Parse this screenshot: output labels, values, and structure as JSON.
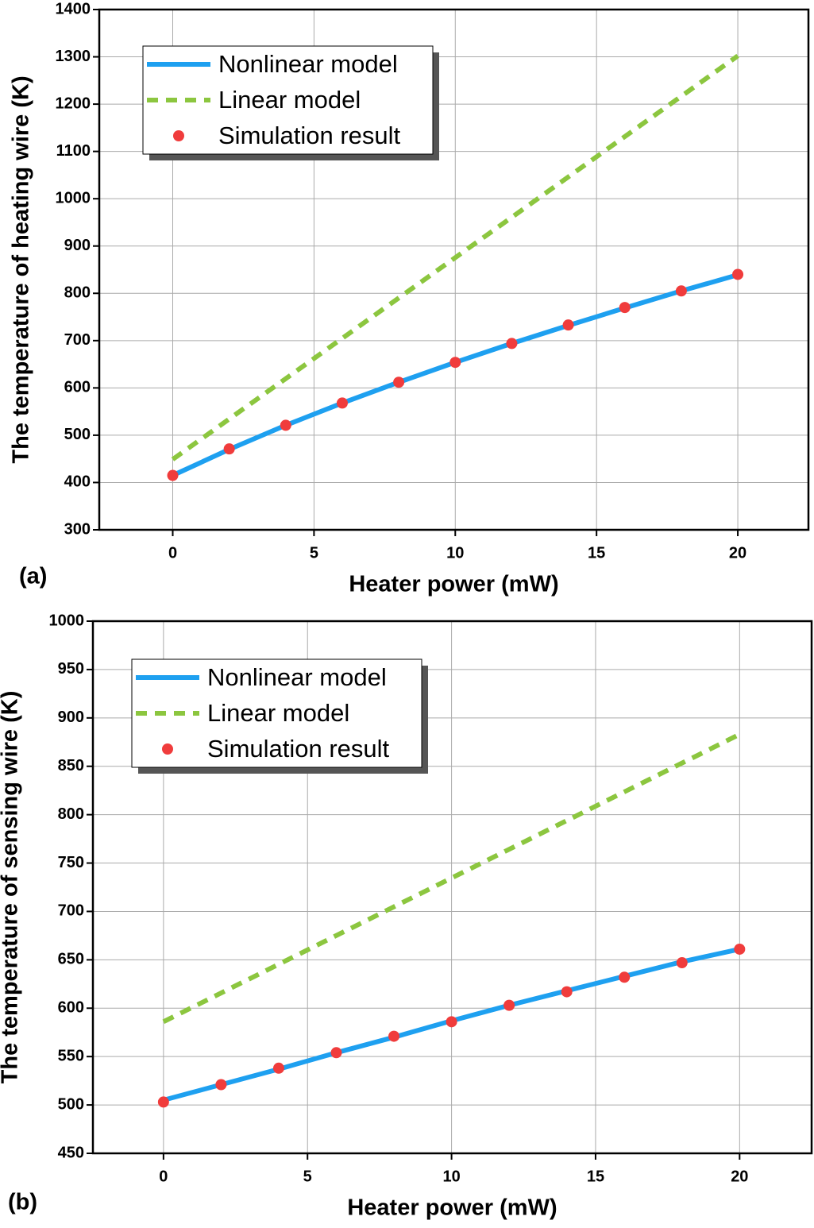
{
  "chart_data": [
    {
      "type": "line",
      "panel_label": "(a)",
      "x_label": "Heater power (mW)",
      "y_label": "The temperature of heating wire (K)",
      "xlim": [
        -2.6,
        22.5
      ],
      "xticks": [
        0,
        5,
        10,
        15,
        20
      ],
      "ylim": [
        300,
        1400
      ],
      "yticks": [
        300,
        400,
        500,
        600,
        700,
        800,
        900,
        1000,
        1100,
        1200,
        1300,
        1400
      ],
      "grid": true,
      "legend": "upper left",
      "series": [
        {
          "name": "Nonlinear model",
          "color": "#1ea0f0",
          "linestyle": "solid",
          "x": [
            0,
            2,
            4,
            6,
            8,
            10,
            12,
            14,
            16,
            18,
            20
          ],
          "values": [
            415,
            470,
            521,
            568,
            612,
            654,
            694,
            732,
            769,
            805,
            839
          ]
        },
        {
          "name": "Linear model",
          "color": "#8cc63f",
          "linestyle": "dashed",
          "x": [
            0,
            20
          ],
          "values": [
            449,
            1302
          ]
        },
        {
          "name": "Simulation result",
          "color": "#f03c3c",
          "linestyle": "none",
          "marker": "circle",
          "x": [
            0,
            2,
            4,
            6,
            8,
            10,
            12,
            14,
            16,
            18,
            20
          ],
          "values": [
            415,
            471,
            521,
            568,
            612,
            654,
            694,
            733,
            770,
            805,
            840
          ]
        }
      ]
    },
    {
      "type": "line",
      "panel_label": "(b)",
      "x_label": "Heater power (mW)",
      "y_label": "The temperature of sensing wire (K)",
      "xlim": [
        -2.45,
        22.5
      ],
      "xticks": [
        0,
        5,
        10,
        15,
        20
      ],
      "ylim": [
        450,
        1000
      ],
      "yticks": [
        450,
        500,
        550,
        600,
        650,
        700,
        750,
        800,
        850,
        900,
        950,
        1000
      ],
      "grid": true,
      "legend": "upper left",
      "series": [
        {
          "name": "Nonlinear model",
          "color": "#1ea0f0",
          "linestyle": "solid",
          "x": [
            0,
            2,
            4,
            6,
            8,
            10,
            12,
            14,
            16,
            18,
            20
          ],
          "values": [
            505,
            521,
            537,
            554,
            570,
            587,
            603,
            618,
            633,
            648,
            661
          ]
        },
        {
          "name": "Linear model",
          "color": "#8cc63f",
          "linestyle": "dashed",
          "x": [
            0,
            20
          ],
          "values": [
            586,
            883
          ]
        },
        {
          "name": "Simulation result",
          "color": "#f03c3c",
          "linestyle": "none",
          "marker": "circle",
          "x": [
            0,
            2,
            4,
            6,
            8,
            10,
            12,
            14,
            16,
            18,
            20
          ],
          "values": [
            503,
            521,
            538,
            554,
            571,
            586,
            603,
            617,
            632,
            647,
            661
          ]
        }
      ]
    }
  ]
}
